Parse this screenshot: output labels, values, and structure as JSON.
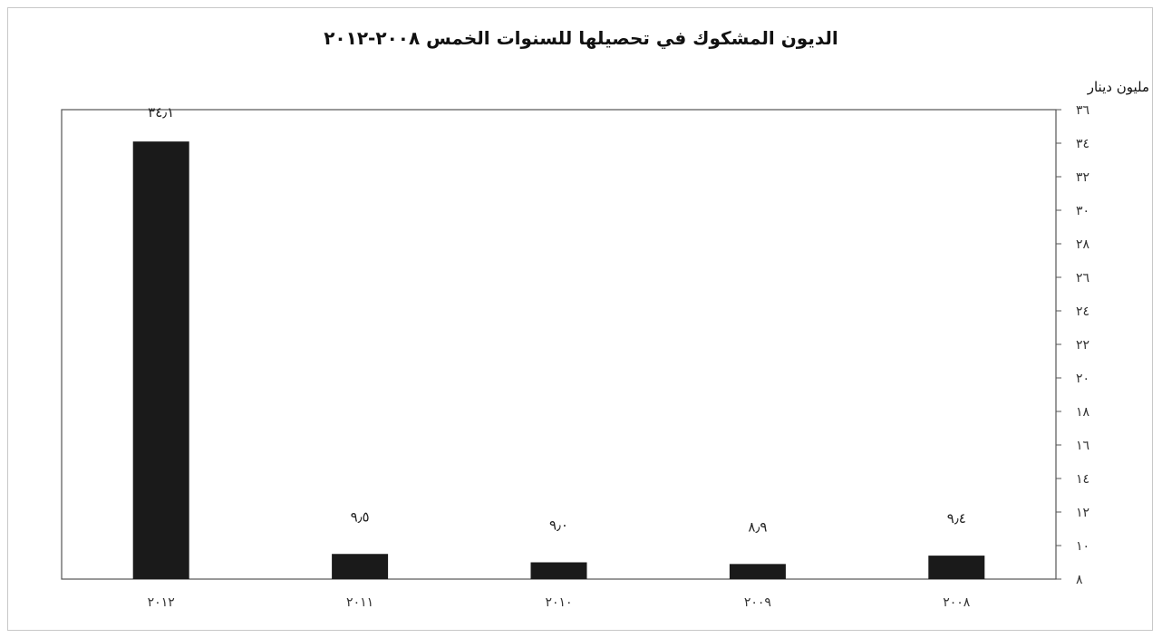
{
  "chart_data": {
    "type": "bar",
    "title": "الديون المشكوك في تحصيلها للسنوات الخمس ٢٠٠٨-٢٠١٢",
    "unit": "مليون دينار",
    "categories": [
      "٢٠١٢",
      "٢٠١١",
      "٢٠١٠",
      "٢٠٠٩",
      "٢٠٠٨"
    ],
    "values": [
      34.1,
      9.5,
      9.0,
      8.9,
      9.4
    ],
    "data_labels": [
      "٣٤٫١",
      "٩٫٥",
      "٩٫٠",
      "٨٫٩",
      "٩٫٤"
    ],
    "y_ticks": [
      {
        "value": 8,
        "label": "٨"
      },
      {
        "value": 10,
        "label": "١٠"
      },
      {
        "value": 12,
        "label": "١٢"
      },
      {
        "value": 14,
        "label": "١٤"
      },
      {
        "value": 16,
        "label": "١٦"
      },
      {
        "value": 18,
        "label": "١٨"
      },
      {
        "value": 20,
        "label": "٢٠"
      },
      {
        "value": 22,
        "label": "٢٢"
      },
      {
        "value": 24,
        "label": "٢٤"
      },
      {
        "value": 26,
        "label": "٢٦"
      },
      {
        "value": 28,
        "label": "٢٨"
      },
      {
        "value": 30,
        "label": "٣٠"
      },
      {
        "value": 32,
        "label": "٣٢"
      },
      {
        "value": 34,
        "label": "٣٤"
      },
      {
        "value": 36,
        "label": "٣٦"
      }
    ],
    "ylim": [
      8,
      36
    ],
    "y_axis_side": "right",
    "grid": false,
    "legend": "none",
    "bar_color": "#1a1a1a"
  }
}
